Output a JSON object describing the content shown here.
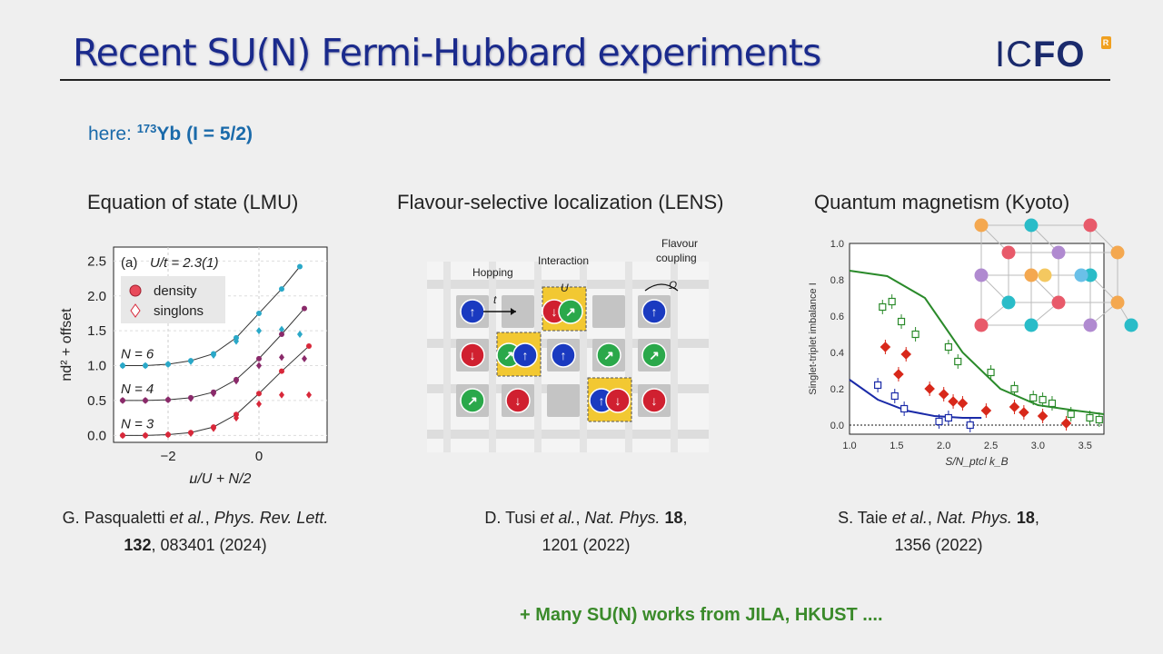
{
  "slide": {
    "title": "Recent SU(N) Fermi-Hubbard experiments",
    "logo": {
      "text_a": "IC",
      "text_b": "FO",
      "mark": "R"
    },
    "here": {
      "prefix": "here: ",
      "isotope_mass": "173",
      "element": "Yb",
      "spin": "(I = 5/2)"
    },
    "panels": [
      {
        "heading": "Equation of state (LMU)",
        "ref_line1_a": "G. Pasqualetti ",
        "ref_line1_b": "et al.",
        "ref_line1_c": ", ",
        "ref_line1_d": "Phys. Rev. Lett.",
        "ref_line2_a": "132",
        "ref_line2_b": ", 083401 (2024)"
      },
      {
        "heading": "Flavour-selective localization (LENS)",
        "ref_line1_a": "D. Tusi ",
        "ref_line1_b": "et al.",
        "ref_line1_c": ", ",
        "ref_line1_d": "Nat. Phys. ",
        "ref_line1_e": "18",
        "ref_line1_f": ",",
        "ref_line2": "1201 (2022)"
      },
      {
        "heading": "Quantum magnetism (Kyoto)",
        "ref_line1_a": "S. Taie ",
        "ref_line1_b": "et al.",
        "ref_line1_c": ", ",
        "ref_line1_d": "Nat. Phys. ",
        "ref_line1_e": "18",
        "ref_line1_f": ",",
        "ref_line2": "1356 (2022)"
      }
    ],
    "footer": "+ Many SU(N) works from JILA, HKUST ....",
    "colors": {
      "title": "#1a2a8c",
      "here": "#1a6aaa",
      "footer": "#3a8a2a"
    }
  },
  "chart_data": [
    {
      "type": "line",
      "panel_label": "(a)",
      "annotation": "U/t = 2.3(1)",
      "xlabel": "μ/U + N/2",
      "ylabel": "nd² + offset",
      "xlim": [
        -3.2,
        1.5
      ],
      "ylim": [
        -0.1,
        2.7
      ],
      "xticks": [
        "−2",
        "0"
      ],
      "yticks": [
        "0.0",
        "0.5",
        "1.0",
        "1.5",
        "2.0",
        "2.5"
      ],
      "legend": [
        "density",
        "singlons"
      ],
      "series": [
        {
          "name": "N = 6",
          "color": "#2aa8c8",
          "density": {
            "x": [
              -3.0,
              -2.5,
              -2.0,
              -1.5,
              -1.0,
              -0.5,
              0.0,
              0.5,
              0.9
            ],
            "y": [
              1.0,
              1.0,
              1.02,
              1.07,
              1.17,
              1.4,
              1.75,
              2.1,
              2.42
            ]
          },
          "singlons": {
            "x": [
              -3.0,
              -2.5,
              -2.0,
              -1.5,
              -1.0,
              -0.5,
              0.0,
              0.5,
              0.9
            ],
            "y": [
              1.0,
              1.0,
              1.02,
              1.06,
              1.15,
              1.35,
              1.5,
              1.52,
              1.45
            ]
          }
        },
        {
          "name": "N = 4",
          "color": "#8a2a6a",
          "density": {
            "x": [
              -3.0,
              -2.5,
              -2.0,
              -1.5,
              -1.0,
              -0.5,
              0.0,
              0.5,
              1.0
            ],
            "y": [
              0.5,
              0.5,
              0.51,
              0.54,
              0.62,
              0.8,
              1.1,
              1.45,
              1.82
            ]
          },
          "singlons": {
            "x": [
              -3.0,
              -2.5,
              -2.0,
              -1.5,
              -1.0,
              -0.5,
              0.0,
              0.5,
              1.0
            ],
            "y": [
              0.5,
              0.5,
              0.51,
              0.53,
              0.6,
              0.78,
              1.0,
              1.12,
              1.1
            ]
          }
        },
        {
          "name": "N = 3",
          "color": "#d8283a",
          "density": {
            "x": [
              -3.0,
              -2.5,
              -2.0,
              -1.5,
              -1.0,
              -0.5,
              0.0,
              0.5,
              1.1
            ],
            "y": [
              0.0,
              0.0,
              0.01,
              0.04,
              0.12,
              0.3,
              0.6,
              0.92,
              1.28
            ]
          },
          "singlons": {
            "x": [
              -3.0,
              -2.5,
              -2.0,
              -1.5,
              -1.0,
              -0.5,
              0.0,
              0.5,
              1.1
            ],
            "y": [
              0.0,
              0.0,
              0.01,
              0.03,
              0.1,
              0.25,
              0.45,
              0.58,
              0.58
            ]
          }
        }
      ]
    },
    {
      "type": "scatter",
      "xlabel": "S/N_ptcl k_B",
      "ylabel": "Singlet-triplet imbalance I",
      "xlim": [
        1.0,
        3.7
      ],
      "ylim": [
        -0.05,
        1.0
      ],
      "xticks": [
        "1.0",
        "1.5",
        "2.0",
        "2.5",
        "3.0",
        "3.5"
      ],
      "yticks": [
        "0.0",
        "0.2",
        "0.4",
        "0.6",
        "0.8",
        "1.0"
      ],
      "series": [
        {
          "color": "#2a8a2a",
          "curve": {
            "x": [
              1.0,
              1.4,
              1.8,
              2.0,
              2.2,
              2.6,
              3.0,
              3.4,
              3.7
            ],
            "y": [
              0.85,
              0.82,
              0.7,
              0.55,
              0.4,
              0.2,
              0.11,
              0.08,
              0.06
            ]
          },
          "points": {
            "x": [
              1.35,
              1.45,
              1.55,
              1.7,
              2.05,
              2.15,
              2.5,
              2.75,
              2.95,
              3.05,
              3.15,
              3.35,
              3.55,
              3.65
            ],
            "y": [
              0.65,
              0.68,
              0.57,
              0.5,
              0.43,
              0.35,
              0.29,
              0.2,
              0.15,
              0.14,
              0.12,
              0.06,
              0.04,
              0.03
            ]
          }
        },
        {
          "color": "#d8281a",
          "points": {
            "x": [
              1.38,
              1.52,
              1.6,
              1.85,
              2.0,
              2.1,
              2.2,
              2.45,
              2.75,
              2.85,
              3.05,
              3.3
            ],
            "y": [
              0.43,
              0.28,
              0.39,
              0.2,
              0.17,
              0.13,
              0.12,
              0.08,
              0.1,
              0.07,
              0.05,
              0.01
            ]
          }
        },
        {
          "color": "#1a2aa8",
          "curve": {
            "x": [
              1.0,
              1.3,
              1.6,
              1.9,
              2.2,
              2.4
            ],
            "y": [
              0.25,
              0.14,
              0.08,
              0.05,
              0.04,
              0.04
            ]
          },
          "points": {
            "x": [
              1.3,
              1.48,
              1.58,
              1.95,
              2.05,
              2.28
            ],
            "y": [
              0.22,
              0.16,
              0.09,
              0.02,
              0.04,
              0.0
            ]
          }
        }
      ]
    }
  ],
  "diagram": {
    "labels": {
      "hopping": "Hopping",
      "interaction": "Interaction",
      "flavour": "Flavour",
      "coupling": "coupling",
      "t": "t",
      "U": "U",
      "omega": "Ω"
    }
  }
}
